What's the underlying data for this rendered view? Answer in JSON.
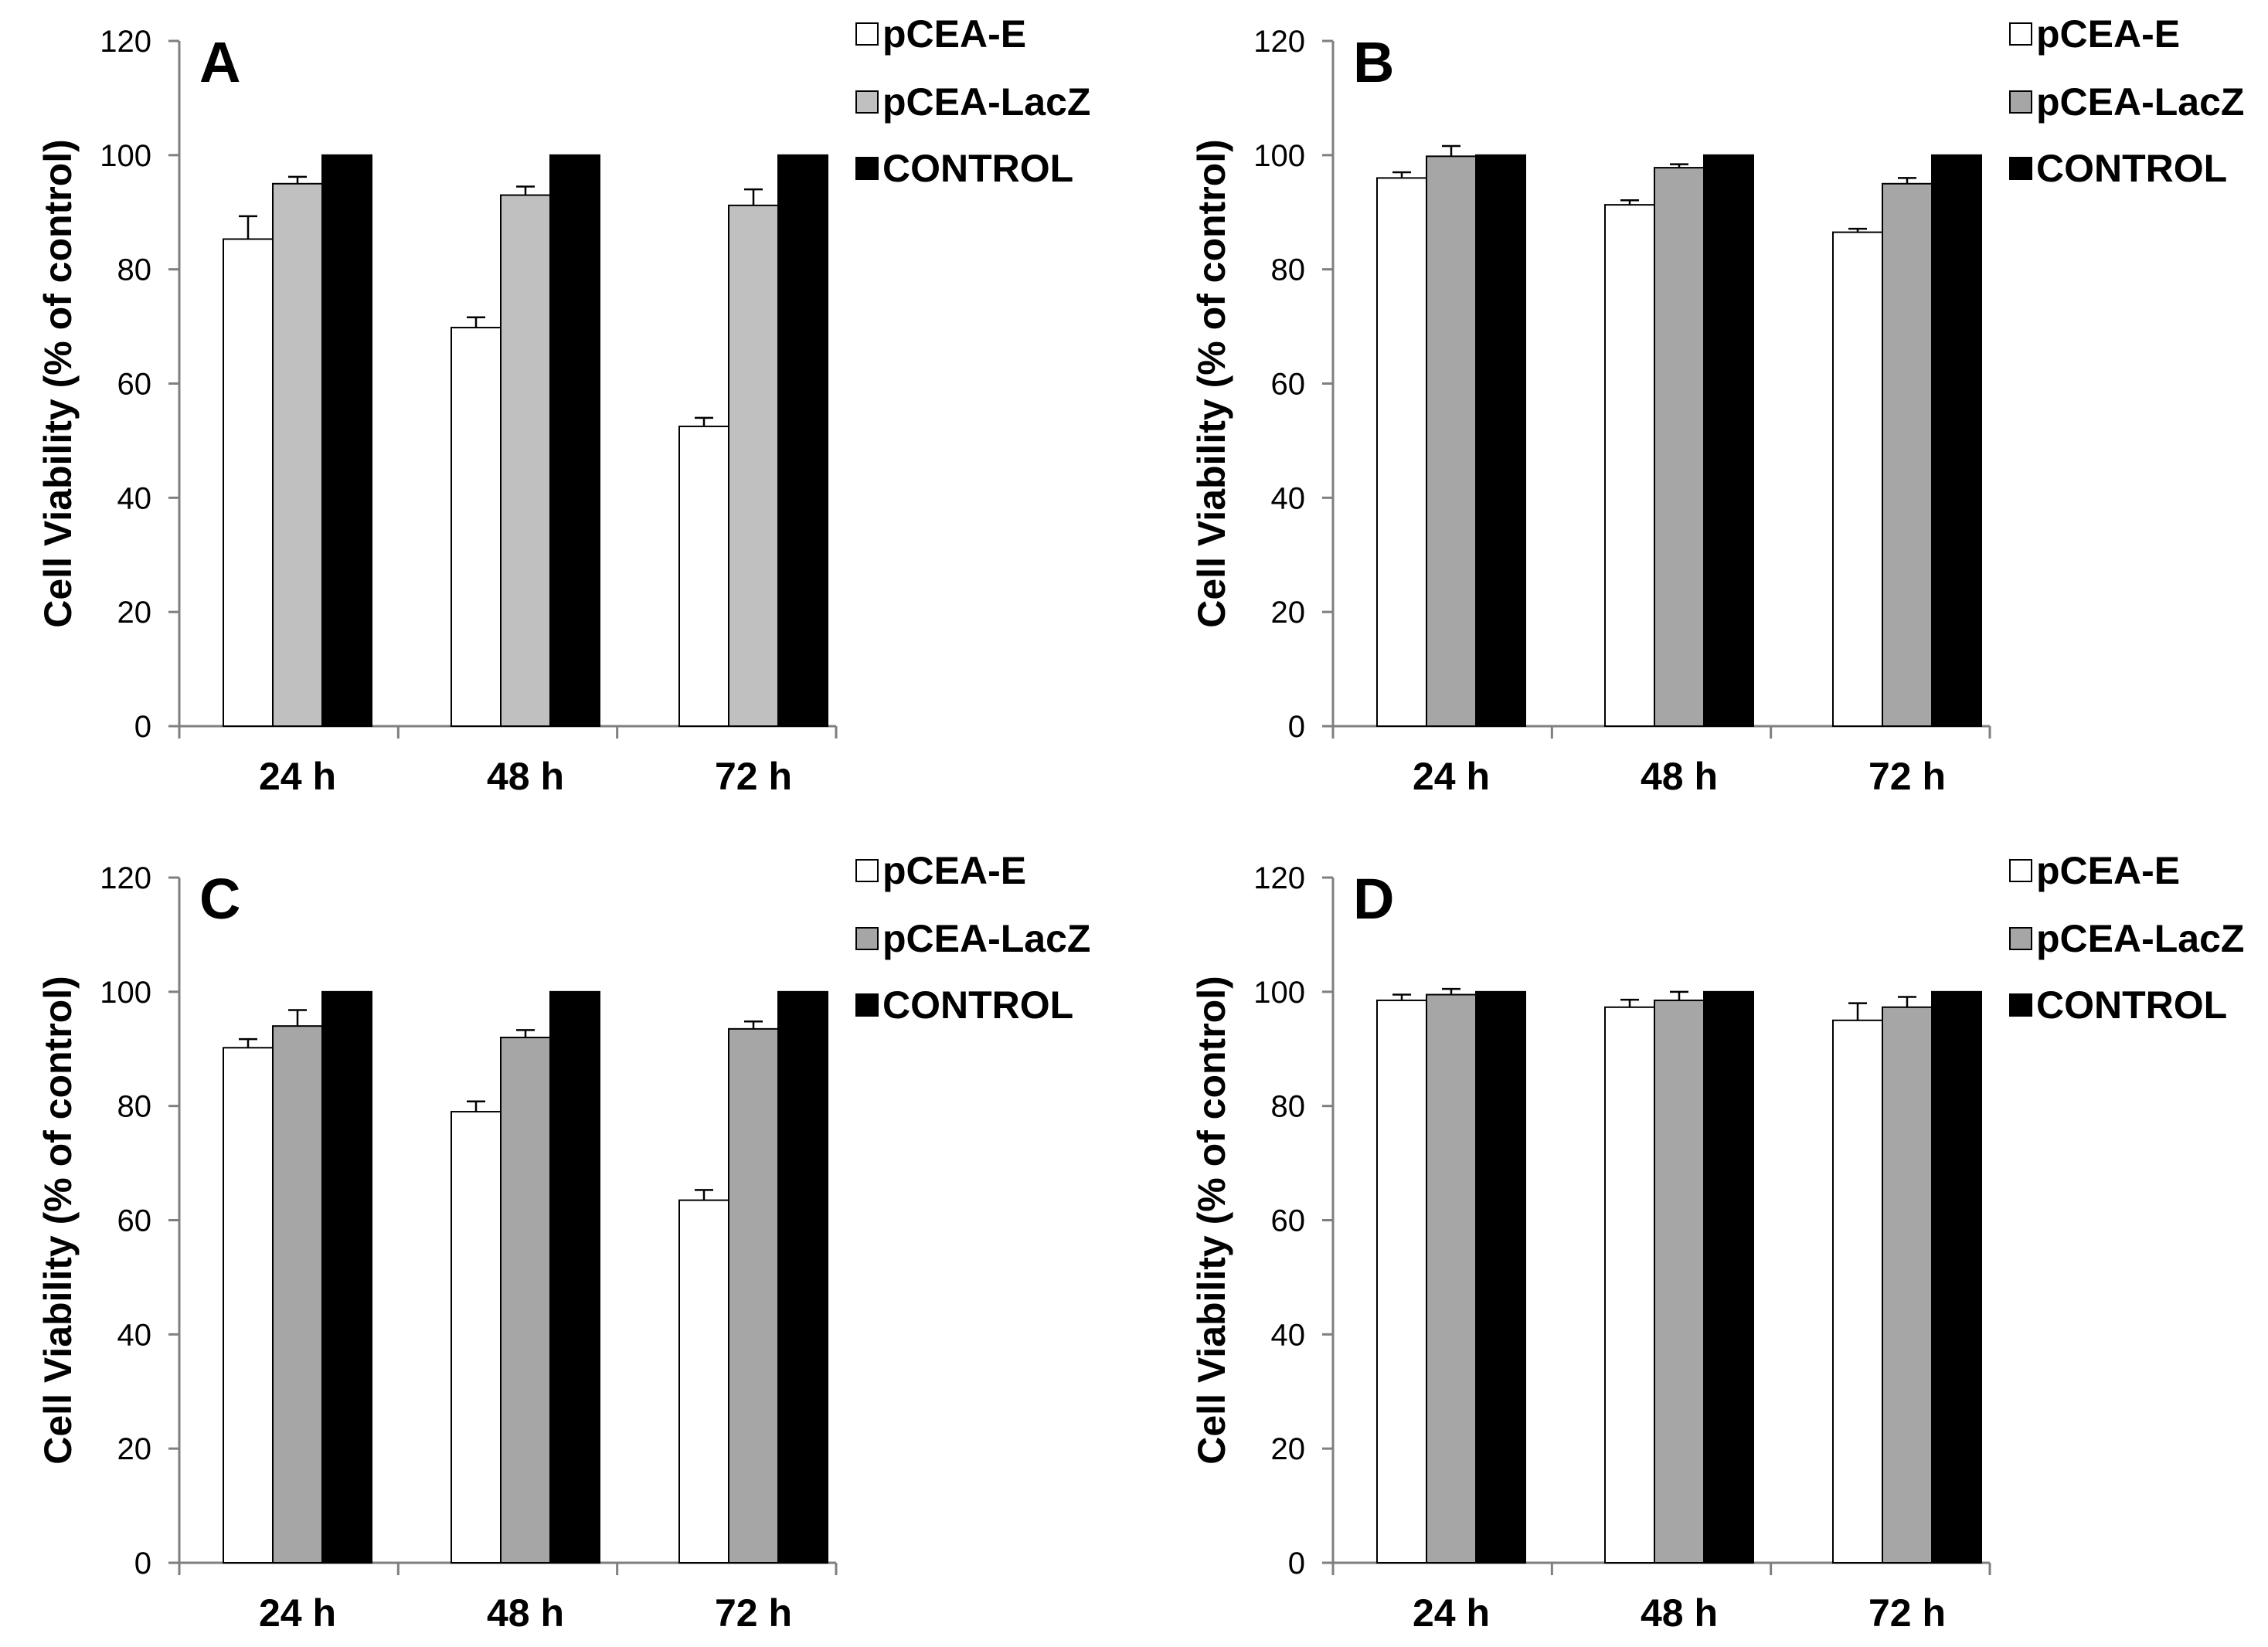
{
  "chart_data": [
    {
      "type": "bar",
      "panel_label": "A",
      "categories": [
        "24 h",
        "48 h",
        "72 h"
      ],
      "ylabel": "Cell Viability (% of control)",
      "ylim": [
        0,
        120
      ],
      "yticks": [
        0,
        20,
        40,
        60,
        80,
        100,
        120
      ],
      "grid": false,
      "legend_position": "top-right",
      "series": [
        {
          "name": "pCEA-E",
          "values": [
            85.3,
            69.8,
            52.5
          ],
          "errors": [
            4.0,
            1.8,
            1.5
          ],
          "color": "#ffffff"
        },
        {
          "name": "pCEA-LacZ",
          "values": [
            95.0,
            93.0,
            91.2
          ],
          "errors": [
            1.2,
            1.5,
            2.8
          ],
          "color": "#c0c0c0"
        },
        {
          "name": "CONTROL",
          "values": [
            100,
            100,
            100
          ],
          "errors": [
            0,
            0,
            0
          ],
          "color": "#000000"
        }
      ]
    },
    {
      "type": "bar",
      "panel_label": "B",
      "categories": [
        "24 h",
        "48 h",
        "72 h"
      ],
      "ylabel": "Cell Viability (% of control)",
      "ylim": [
        0,
        120
      ],
      "yticks": [
        0,
        20,
        40,
        60,
        80,
        100,
        120
      ],
      "grid": false,
      "legend_position": "top-right",
      "series": [
        {
          "name": "pCEA-E",
          "values": [
            96.0,
            91.3,
            86.5
          ],
          "errors": [
            1.0,
            0.8,
            0.6
          ],
          "color": "#ffffff"
        },
        {
          "name": "pCEA-LacZ",
          "values": [
            99.8,
            97.8,
            95.0
          ],
          "errors": [
            1.8,
            0.6,
            1.0
          ],
          "color": "#a6a6a6"
        },
        {
          "name": "CONTROL",
          "values": [
            100,
            100,
            100
          ],
          "errors": [
            0,
            0,
            0
          ],
          "color": "#000000"
        }
      ]
    },
    {
      "type": "bar",
      "panel_label": "C",
      "categories": [
        "24 h",
        "48 h",
        "72 h"
      ],
      "ylabel": "Cell Viability (% of control)",
      "ylim": [
        0,
        120
      ],
      "yticks": [
        0,
        20,
        40,
        60,
        80,
        100,
        120
      ],
      "grid": false,
      "legend_position": "top-right",
      "series": [
        {
          "name": "pCEA-E",
          "values": [
            90.2,
            79.0,
            63.5
          ],
          "errors": [
            1.5,
            1.8,
            1.8
          ],
          "color": "#ffffff"
        },
        {
          "name": "pCEA-LacZ",
          "values": [
            94.0,
            92.0,
            93.5
          ],
          "errors": [
            2.8,
            1.3,
            1.3
          ],
          "color": "#a6a6a6"
        },
        {
          "name": "CONTROL",
          "values": [
            100,
            100,
            100
          ],
          "errors": [
            0,
            0,
            0
          ],
          "color": "#000000"
        }
      ]
    },
    {
      "type": "bar",
      "panel_label": "D",
      "categories": [
        "24 h",
        "48 h",
        "72 h"
      ],
      "ylabel": "Cell Viability (% of control)",
      "ylim": [
        0,
        120
      ],
      "yticks": [
        0,
        20,
        40,
        60,
        80,
        100,
        120
      ],
      "grid": false,
      "legend_position": "top-right",
      "series": [
        {
          "name": "pCEA-E",
          "values": [
            98.5,
            97.3,
            95.0
          ],
          "errors": [
            1.0,
            1.3,
            3.0
          ],
          "color": "#ffffff"
        },
        {
          "name": "pCEA-LacZ",
          "values": [
            99.5,
            98.5,
            97.3
          ],
          "errors": [
            1.0,
            1.5,
            1.8
          ],
          "color": "#a6a6a6"
        },
        {
          "name": "CONTROL",
          "values": [
            100,
            100,
            100
          ],
          "errors": [
            0,
            0,
            0
          ],
          "color": "#000000"
        }
      ]
    }
  ]
}
